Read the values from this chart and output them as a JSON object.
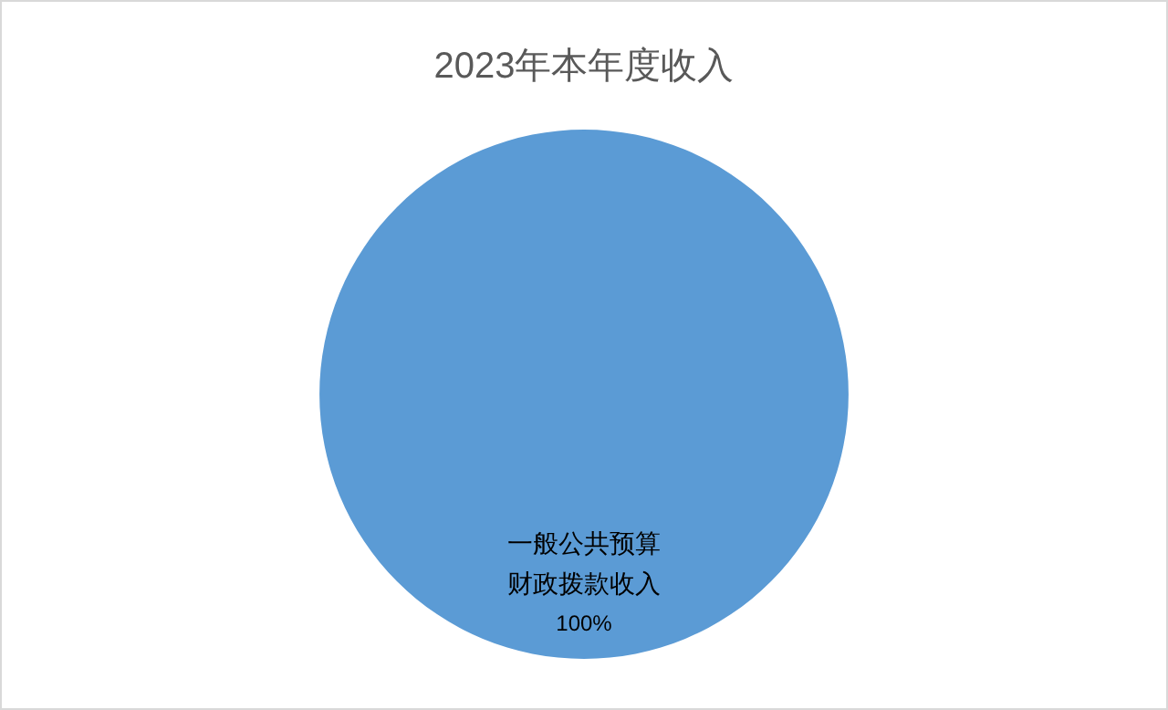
{
  "chart_data": {
    "type": "pie",
    "title": "2023年本年度收入",
    "categories": [
      "一般公共预算财政拨款收入"
    ],
    "values": [
      100
    ],
    "colors": [
      "#5b9bd5"
    ],
    "value_labels": [
      "100%"
    ],
    "legend": false
  }
}
